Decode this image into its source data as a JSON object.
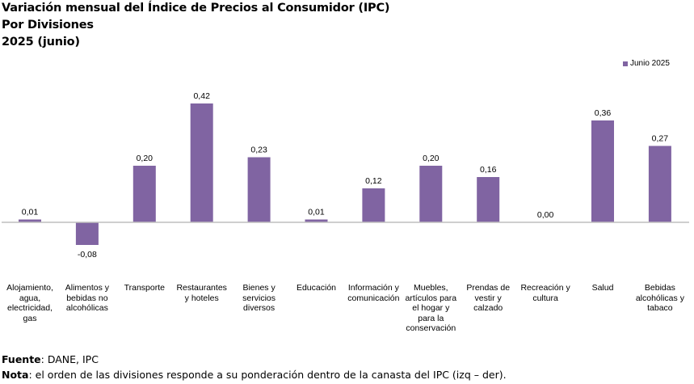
{
  "chart_data": {
    "type": "bar",
    "title": "Variación mensual del Índice de Precios al Consumidor (IPC)",
    "subtitle_lines": [
      "Por Divisiones",
      "2025 (junio)"
    ],
    "xlabel": "",
    "ylabel": "",
    "grid": false,
    "legend_position": "top-right",
    "categories": [
      "Alojamiento, agua, electricidad, gas",
      "Alimentos y bebidas no alcohólicas",
      "Transporte",
      "Restaurantes y hoteles",
      "Bienes y servicios diversos",
      "Educación",
      "Información y comunicación",
      "Muebles, artículos para el hogar y para la conservación",
      "Prendas de vestir y calzado",
      "Recreación y cultura",
      "Salud",
      "Bebidas alcohólicas y tabaco"
    ],
    "series": [
      {
        "name": "Junio 2025",
        "color": "#8064A2",
        "values": [
          0.01,
          -0.08,
          0.2,
          0.42,
          0.23,
          0.01,
          0.12,
          0.2,
          0.16,
          0.0,
          0.36,
          0.27
        ],
        "data_labels": [
          "0,01",
          "-0,08",
          "0,20",
          "0,42",
          "0,23",
          "0,01",
          "0,12",
          "0,20",
          "0,16",
          "0,00",
          "0,36",
          "0,27"
        ]
      }
    ],
    "ylim": [
      -0.2,
      0.6
    ]
  },
  "header": {
    "title_line1": "Variación mensual del Índice de Precios al Consumidor (IPC)",
    "title_line2": "Por Divisiones",
    "title_line3": "2025 (junio)"
  },
  "legend": {
    "label": "Junio 2025"
  },
  "category_labels": [
    "Alojamiento,\nagua,\nelectricidad,\ngas",
    "Alimentos y\nbebidas no\nalcohólicas",
    "Transporte",
    "Restaurantes\ny hoteles",
    "Bienes y\nservicios\ndiversos",
    "Educación",
    "Información y\ncomunicación",
    "Muebles,\nartículos para\nel hogar y\npara la\nconservación",
    "Prendas de\nvestir y\ncalzado",
    "Recreación y\ncultura",
    "Salud",
    "Bebidas\nalcohólicas y\ntabaco"
  ],
  "footer": {
    "source_label": "Fuente",
    "source_text": ": DANE, IPC",
    "note_label": "Nota",
    "note_text": ": el orden de las divisiones responde a su ponderación dentro de la canasta del IPC (izq – der)."
  },
  "colors": {
    "bar": "#8064A2",
    "axis": "#BFBFBF",
    "text": "#000000"
  }
}
